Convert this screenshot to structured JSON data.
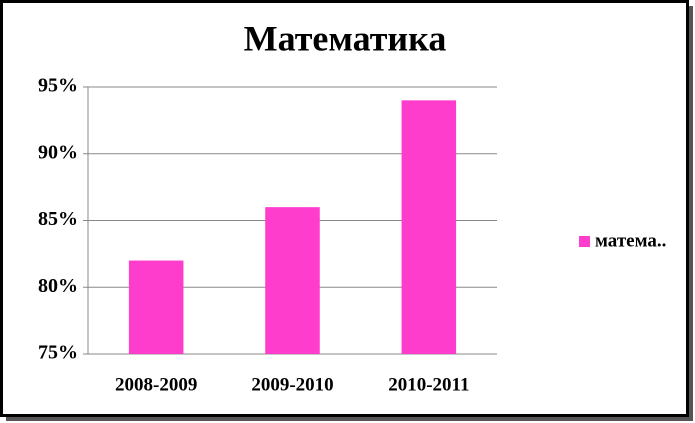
{
  "chart_data": {
    "type": "bar",
    "title": "Математика",
    "categories": [
      "2008-2009",
      "2009-2010",
      "2010-2011"
    ],
    "series": [
      {
        "name": "матема..",
        "color": "#ff3dcc",
        "values": [
          82,
          86,
          94
        ]
      }
    ],
    "ylim": [
      75,
      95
    ],
    "yticks": [
      {
        "value": 75,
        "label": "75%"
      },
      {
        "value": 80,
        "label": "80%"
      },
      {
        "value": 85,
        "label": "85%"
      },
      {
        "value": 90,
        "label": "90%"
      },
      {
        "value": 95,
        "label": "95%"
      }
    ],
    "grid": true,
    "legend": "right"
  }
}
